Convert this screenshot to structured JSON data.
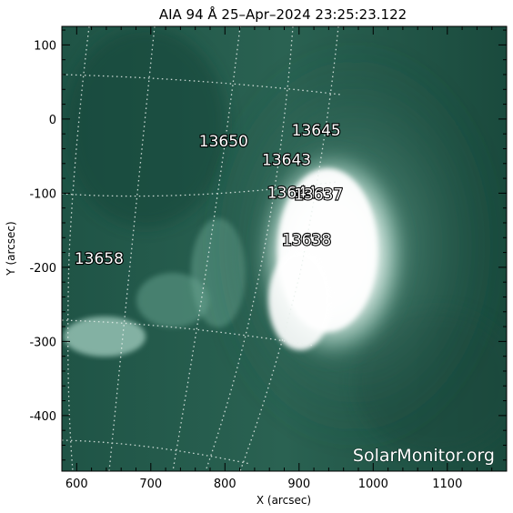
{
  "title": "AIA 94 Å 25–Apr–2024 23:25:23.122",
  "x_axis": {
    "label": "X (arcsec)",
    "range": [
      580,
      1180
    ],
    "ticks": [
      600,
      700,
      800,
      900,
      1000,
      1100
    ]
  },
  "y_axis": {
    "label": "Y (arcsec)",
    "range": [
      -475,
      125
    ],
    "ticks": [
      100,
      0,
      -100,
      -200,
      -300,
      -400
    ]
  },
  "active_regions": [
    {
      "number": "13645",
      "x": 890,
      "y": -22
    },
    {
      "number": "13650",
      "x": 765,
      "y": -37
    },
    {
      "number": "13643",
      "x": 850,
      "y": -62
    },
    {
      "number": "13644",
      "x": 857,
      "y": -106
    },
    {
      "number": "13637",
      "x": 893,
      "y": -109
    },
    {
      "number": "13638",
      "x": 877,
      "y": -170
    },
    {
      "number": "13658",
      "x": 597,
      "y": -195
    }
  ],
  "watermark": "SolarMonitor.org",
  "colors": {
    "disk_base": "#2f6a58",
    "disk_dark": "#0e3a30",
    "flare_white": "#ffffff",
    "grid": "#e8f0ec"
  }
}
